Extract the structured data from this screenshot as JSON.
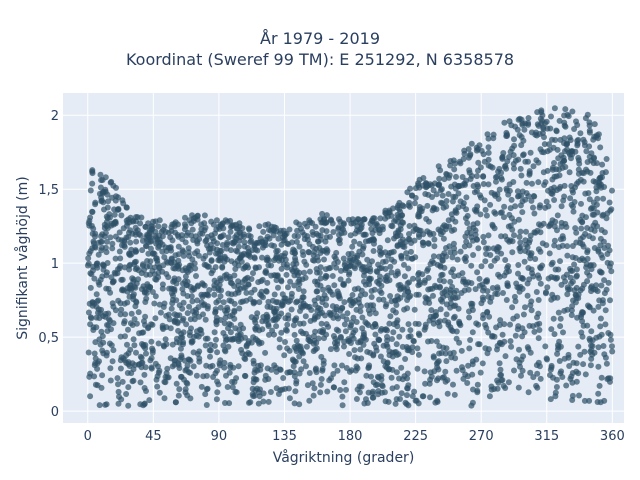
{
  "chart_data": {
    "type": "scatter",
    "title": "År 1979 - 2019",
    "subtitle": "Koordinat (Sweref 99 TM): E 251292, N 6358578",
    "xlabel": "Vågriktning (grader)",
    "ylabel": "Signifikant våghöjd (m)",
    "xlim": [
      -17,
      368
    ],
    "ylim": [
      -0.08,
      2.15
    ],
    "grid": true,
    "legend": "none",
    "x_ticks": [
      0,
      45,
      90,
      135,
      180,
      225,
      270,
      315,
      360
    ],
    "x_tick_labels": [
      "0",
      "45",
      "90",
      "135",
      "180",
      "225",
      "270",
      "315",
      "360"
    ],
    "y_ticks": [
      0,
      0.5,
      1,
      1.5,
      2
    ],
    "y_tick_labels": [
      "0",
      "0,5",
      "1",
      "1,5",
      "2"
    ],
    "colors": {
      "marker": "#2f5168",
      "plot_bg": "#e5ecf6",
      "grid": "#ffffff"
    },
    "series": [
      {
        "x": [
          0,
          10,
          20,
          30,
          45,
          60,
          75,
          90,
          105,
          120,
          135,
          150,
          165,
          180,
          195,
          210,
          225,
          240,
          255,
          270,
          285,
          300,
          315,
          330,
          345,
          355,
          360
        ],
        "y_min": [
          0.02,
          0.02,
          0.03,
          0.03,
          0.03,
          0.03,
          0.03,
          0.03,
          0.03,
          0.03,
          0.03,
          0.03,
          0.03,
          0.03,
          0.03,
          0.03,
          0.03,
          0.03,
          0.03,
          0.03,
          0.03,
          0.03,
          0.03,
          0.03,
          0.03,
          0.03,
          0.04
        ],
        "y_max": [
          1.74,
          1.6,
          1.52,
          1.35,
          1.3,
          1.28,
          1.35,
          1.3,
          1.28,
          1.27,
          1.25,
          1.3,
          1.35,
          1.3,
          1.3,
          1.4,
          1.55,
          1.65,
          1.75,
          1.85,
          1.95,
          2.0,
          2.05,
          2.05,
          2.02,
          1.8,
          1.55
        ]
      }
    ]
  }
}
